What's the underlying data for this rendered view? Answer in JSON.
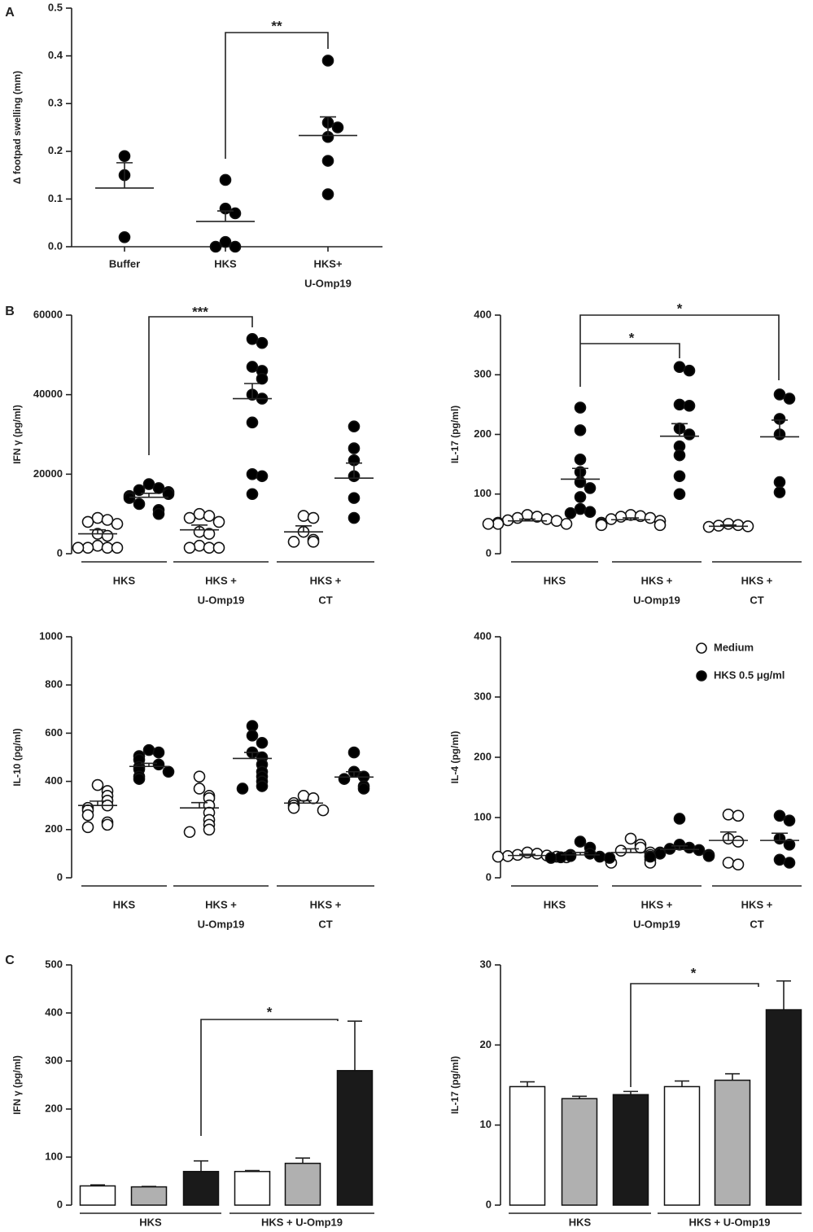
{
  "chart_data": [
    {
      "type": "dot",
      "panel": "A",
      "ylabel": "Δ footpad swelling (mm)",
      "ylim": [
        0,
        0.5
      ],
      "yticks": [
        {
          "value": 0,
          "label": "0.0"
        },
        0.1,
        0.2,
        0.3,
        0.4,
        0.5
      ],
      "categories": [
        [
          "Buffer"
        ],
        [
          "HKS"
        ],
        [
          "HKS+",
          "U-Omp19"
        ]
      ],
      "series": [
        {
          "color": "#000000",
          "points": [
            [
              0.19,
              0.15,
              0.02
            ],
            [
              0.14,
              0.08,
              0.07,
              0.01,
              0.0,
              0.0
            ],
            [
              0.39,
              0.26,
              0.25,
              0.23,
              0.18,
              0.11
            ]
          ],
          "mean": [
            0.123,
            0.053,
            0.233
          ],
          "sem": [
            0.053,
            0.022,
            0.039
          ]
        }
      ],
      "annotations": [
        "**"
      ]
    },
    {
      "type": "dot",
      "panel": "B",
      "ylabel": "IFN γ (pg/ml)",
      "ylim": [
        0,
        60000
      ],
      "yticks": [
        0,
        20000,
        40000,
        60000
      ],
      "categories": [
        [
          "HKS"
        ],
        [
          "HKS +",
          "U-Omp19"
        ],
        [
          "HKS +",
          "CT"
        ]
      ],
      "series": [
        {
          "color": "#ffffff",
          "points": [
            [
              9000,
              8500,
              8000,
              7500,
              5000,
              4500,
              2000,
              1500,
              1500,
              1500,
              1500
            ],
            [
              10000,
              9500,
              9000,
              8000,
              5500,
              5000,
              2000,
              1500,
              1500,
              1500
            ],
            [
              9500,
              9000,
              5500,
              3500,
              3000,
              3000
            ]
          ],
          "mean": [
            5000,
            6000,
            5500
          ],
          "sem": [
            1000,
            1200,
            1500
          ]
        },
        {
          "color": "#000000",
          "points": [
            [
              17500,
              16500,
              16000,
              15500,
              15000,
              14500,
              14000,
              12500,
              11000,
              10000
            ],
            [
              54000,
              53000,
              47000,
              46000,
              44000,
              40000,
              39000,
              33000,
              20000,
              19500,
              15000
            ],
            [
              32000,
              26500,
              23500,
              19500,
              14000,
              9000
            ]
          ],
          "mean": [
            14200,
            39000,
            19000
          ],
          "sem": [
            1000,
            3800,
            3800
          ]
        }
      ],
      "annotations": [
        "***"
      ]
    },
    {
      "type": "dot",
      "ylabel": "IL-17 (pg/ml)",
      "ylim": [
        0,
        400
      ],
      "yticks": [
        0,
        100,
        200,
        300,
        400
      ],
      "categories": [
        [
          "HKS"
        ],
        [
          "HKS +",
          "U-Omp19"
        ],
        [
          "HKS +",
          "CT"
        ]
      ],
      "series": [
        {
          "color": "#ffffff",
          "points": [
            [
              65,
              62,
              60,
              58,
              56,
              55,
              52,
              50,
              50,
              50
            ],
            [
              65,
              63,
              62,
              60,
              58,
              55,
              52,
              50,
              48,
              48
            ],
            [
              50,
              48,
              47,
              46,
              45
            ]
          ],
          "mean": [
            55,
            57,
            46
          ],
          "sem": [
            3,
            3,
            2
          ]
        },
        {
          "color": "#000000",
          "points": [
            [
              245,
              207,
              158,
              137,
              120,
              110,
              95,
              75,
              70,
              68
            ],
            [
              313,
              307,
              250,
              248,
              210,
              200,
              180,
              165,
              130,
              100
            ],
            [
              267,
              260,
              226,
              200,
              120,
              103
            ]
          ],
          "mean": [
            125,
            197,
            196
          ],
          "sem": [
            18,
            21,
            28
          ]
        }
      ],
      "annotations": [
        "*",
        "*"
      ]
    },
    {
      "type": "dot",
      "ylabel": "IL-10 (pg/ml)",
      "ylim": [
        0,
        1000
      ],
      "yticks": [
        0,
        200,
        400,
        600,
        800,
        1000
      ],
      "categories": [
        [
          "HKS"
        ],
        [
          "HKS +",
          "U-Omp19"
        ],
        [
          "HKS +",
          "CT"
        ]
      ],
      "series": [
        {
          "color": "#ffffff",
          "points": [
            [
              385,
              360,
              340,
              320,
              300,
              290,
              280,
              260,
              230,
              220,
              210
            ],
            [
              420,
              370,
              340,
              330,
              300,
              270,
              240,
              220,
              200,
              190
            ],
            [
              340,
              330,
              310,
              300,
              290,
              280
            ]
          ],
          "mean": [
            300,
            290,
            310
          ],
          "sem": [
            18,
            22,
            10
          ]
        },
        {
          "color": "#000000",
          "points": [
            [
              530,
              520,
              505,
              490,
              470,
              460,
              450,
              440,
              420,
              410
            ],
            [
              630,
              590,
              560,
              520,
              500,
              470,
              440,
              420,
              400,
              380,
              370
            ],
            [
              520,
              440,
              420,
              410,
              380,
              370
            ]
          ],
          "mean": [
            462,
            495,
            418
          ],
          "sem": [
            13,
            25,
            22
          ]
        }
      ],
      "annotations": []
    },
    {
      "type": "dot",
      "ylabel": "IL-4 (pg/ml)",
      "ylim": [
        0,
        400
      ],
      "yticks": [
        0,
        100,
        200,
        300,
        400
      ],
      "categories": [
        [
          "HKS"
        ],
        [
          "HKS +",
          "U-Omp19"
        ],
        [
          "HKS +",
          "CT"
        ]
      ],
      "legend": "upper right",
      "series": [
        {
          "name": "Medium",
          "color": "#ffffff",
          "points": [
            [
              42,
              40,
              38,
              37,
              36,
              35,
              35,
              34
            ],
            [
              65,
              55,
              50,
              45,
              42,
              38,
              35,
              30,
              25,
              25
            ],
            [
              105,
              103,
              65,
              60,
              25,
              22
            ]
          ],
          "mean": [
            37,
            42,
            62
          ],
          "sem": [
            2,
            6,
            14
          ]
        },
        {
          "name": "HKS 0.5 μg/ml",
          "color": "#000000",
          "points": [
            [
              60,
              50,
              40,
              38,
              36,
              35,
              34,
              33,
              33
            ],
            [
              98,
              55,
              50,
              48,
              46,
              42,
              40,
              38,
              36,
              35
            ],
            [
              103,
              95,
              65,
              55,
              30,
              25
            ]
          ],
          "mean": [
            38,
            47,
            62
          ],
          "sem": [
            4,
            6,
            12
          ]
        }
      ],
      "annotations": []
    },
    {
      "type": "bar",
      "panel": "C",
      "ylabel": "IFN γ (pg/ml)",
      "ylim": [
        0,
        500
      ],
      "yticks": [
        0,
        100,
        200,
        300,
        400,
        500
      ],
      "categories": [
        "HKS",
        "HKS + U-Omp19"
      ],
      "series": [
        {
          "color": "#ffffff",
          "values": [
            40,
            70
          ],
          "errors": [
            2,
            2
          ]
        },
        {
          "color": "#b0b0b0",
          "values": [
            38,
            87
          ],
          "errors": [
            1,
            11
          ]
        },
        {
          "color": "#1a1a1a",
          "values": [
            70,
            280
          ],
          "errors": [
            22,
            103
          ]
        }
      ],
      "annotations": [
        "*"
      ]
    },
    {
      "type": "bar",
      "ylabel": "IL-17 (pg/ml)",
      "ylim": [
        0,
        30
      ],
      "yticks": [
        0,
        10,
        20,
        30
      ],
      "categories": [
        "HKS",
        "HKS + U-Omp19"
      ],
      "series": [
        {
          "color": "#ffffff",
          "values": [
            14.8,
            14.8
          ],
          "errors": [
            0.6,
            0.7
          ]
        },
        {
          "color": "#b0b0b0",
          "values": [
            13.3,
            15.6
          ],
          "errors": [
            0.3,
            0.8
          ]
        },
        {
          "color": "#1a1a1a",
          "values": [
            13.8,
            24.4
          ],
          "errors": [
            0.4,
            3.6
          ]
        }
      ],
      "annotations": [
        "*"
      ]
    }
  ]
}
